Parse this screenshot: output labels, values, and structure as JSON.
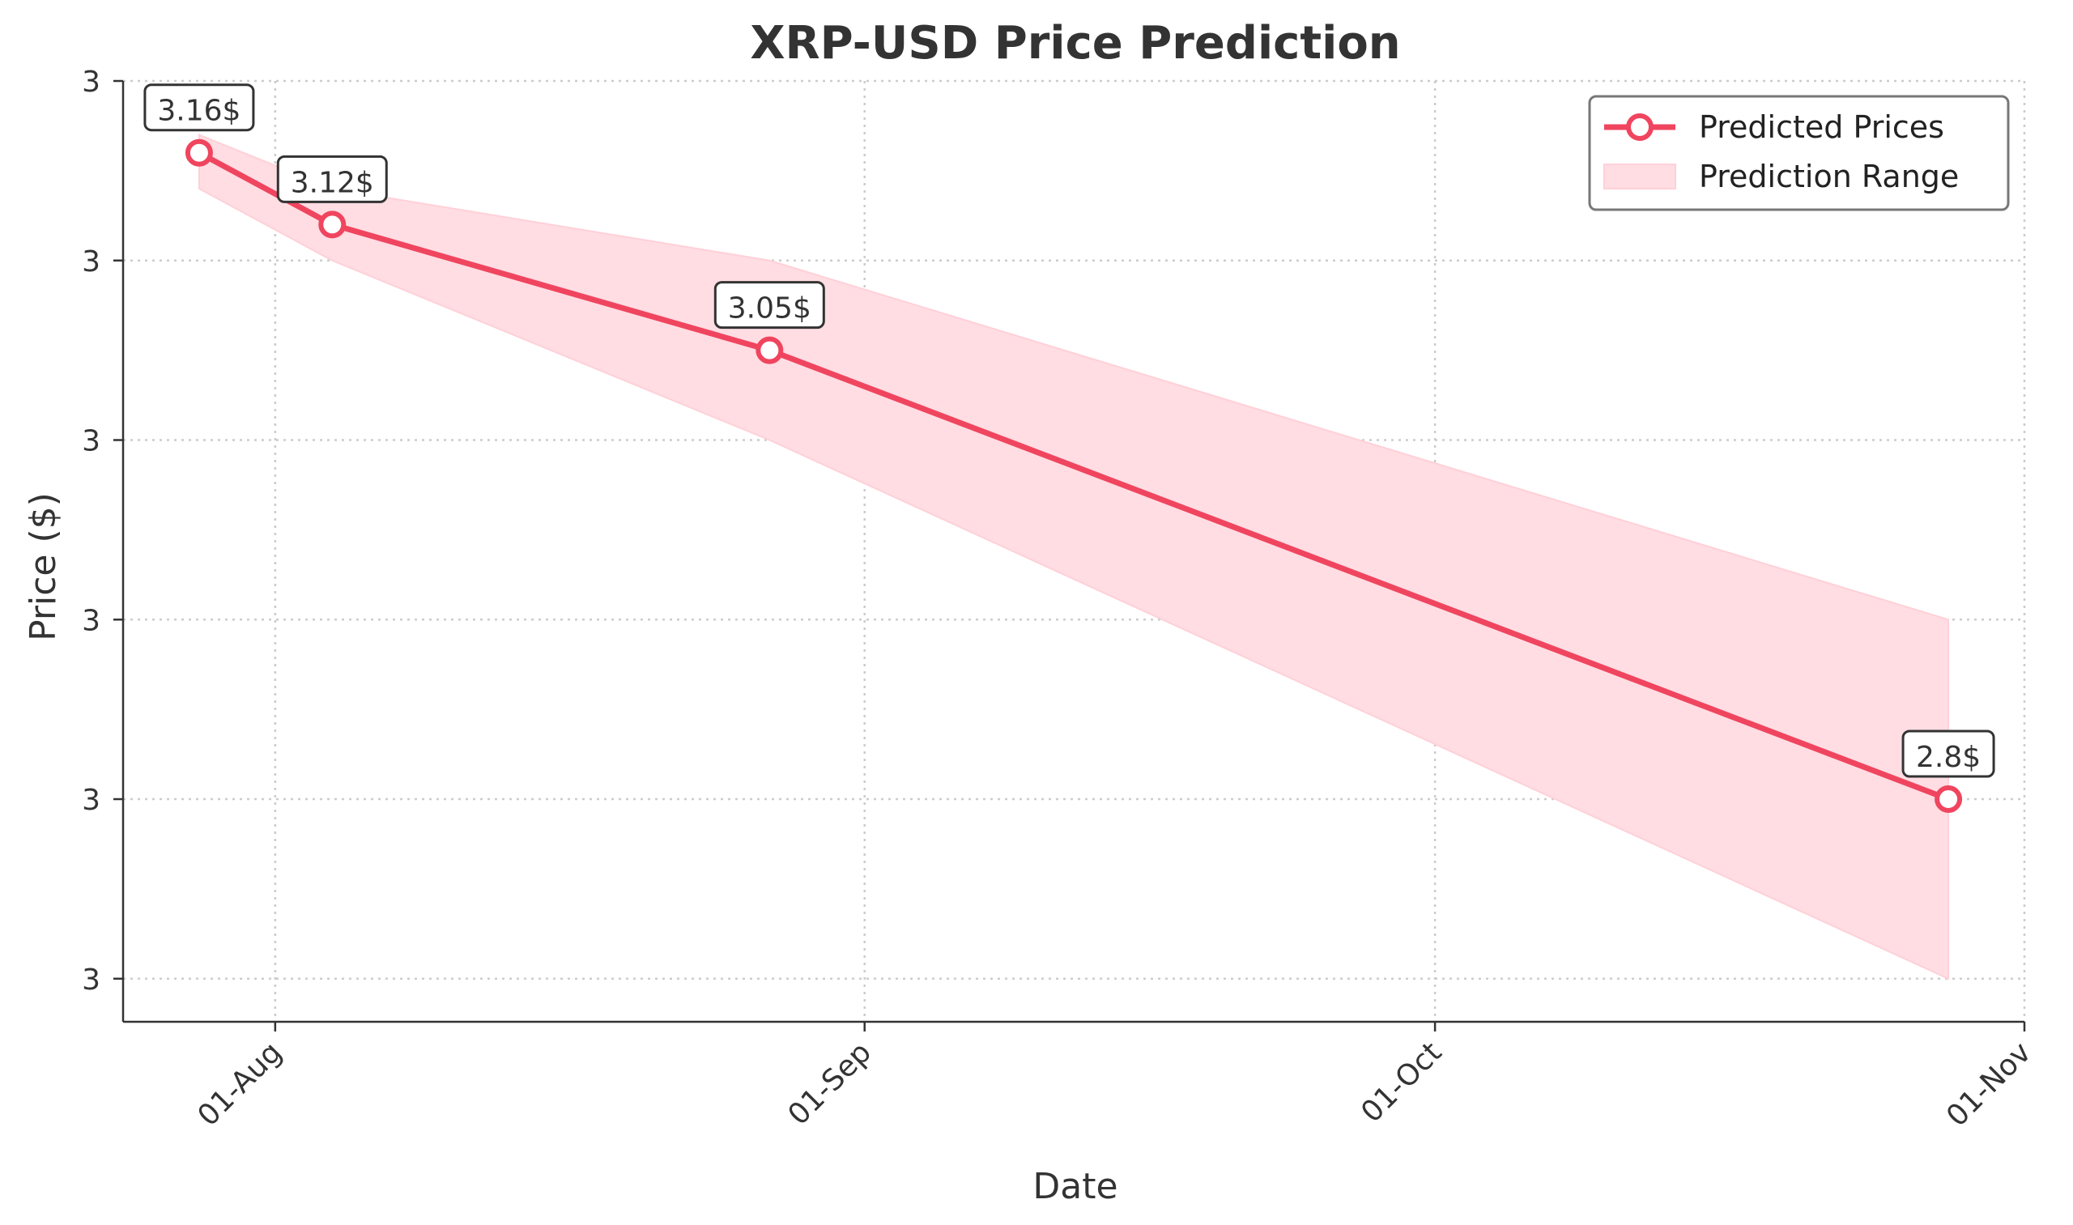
{
  "chart_data": {
    "type": "line",
    "title": "XRP-USD Price Prediction",
    "xlabel": "Date",
    "ylabel": "Price ($)",
    "x_tick_labels": [
      "01-Aug",
      "01-Sep",
      "01-Oct",
      "01-Nov"
    ],
    "x_tick_dates": [
      "2025-08-01",
      "2025-09-01",
      "2025-10-01",
      "2025-11-01"
    ],
    "y_tick_labels": [
      "3",
      "3",
      "3",
      "3",
      "3",
      "3"
    ],
    "y_tick_values": [
      3.2,
      3.1,
      3.0,
      2.9,
      2.8,
      2.7
    ],
    "xlim": [
      "2025-07-24",
      "2025-11-01"
    ],
    "ylim": [
      2.676,
      3.2
    ],
    "grid": true,
    "legend_position": "upper right",
    "series": [
      {
        "name": "Predicted Prices",
        "color": "#f0455f",
        "x": [
          "2025-07-28",
          "2025-08-04",
          "2025-08-27",
          "2025-10-28"
        ],
        "y": [
          3.16,
          3.12,
          3.05,
          2.8
        ]
      }
    ],
    "range_band": {
      "name": "Prediction Range",
      "color": "#ffdde3",
      "x": [
        "2025-07-28",
        "2025-08-04",
        "2025-08-27",
        "2025-10-28"
      ],
      "upper": [
        3.17,
        3.14,
        3.1,
        2.9
      ],
      "lower": [
        3.14,
        3.1,
        3.0,
        2.7
      ]
    },
    "annotations": [
      "3.16$",
      "3.12$",
      "3.05$",
      "2.8$"
    ]
  }
}
